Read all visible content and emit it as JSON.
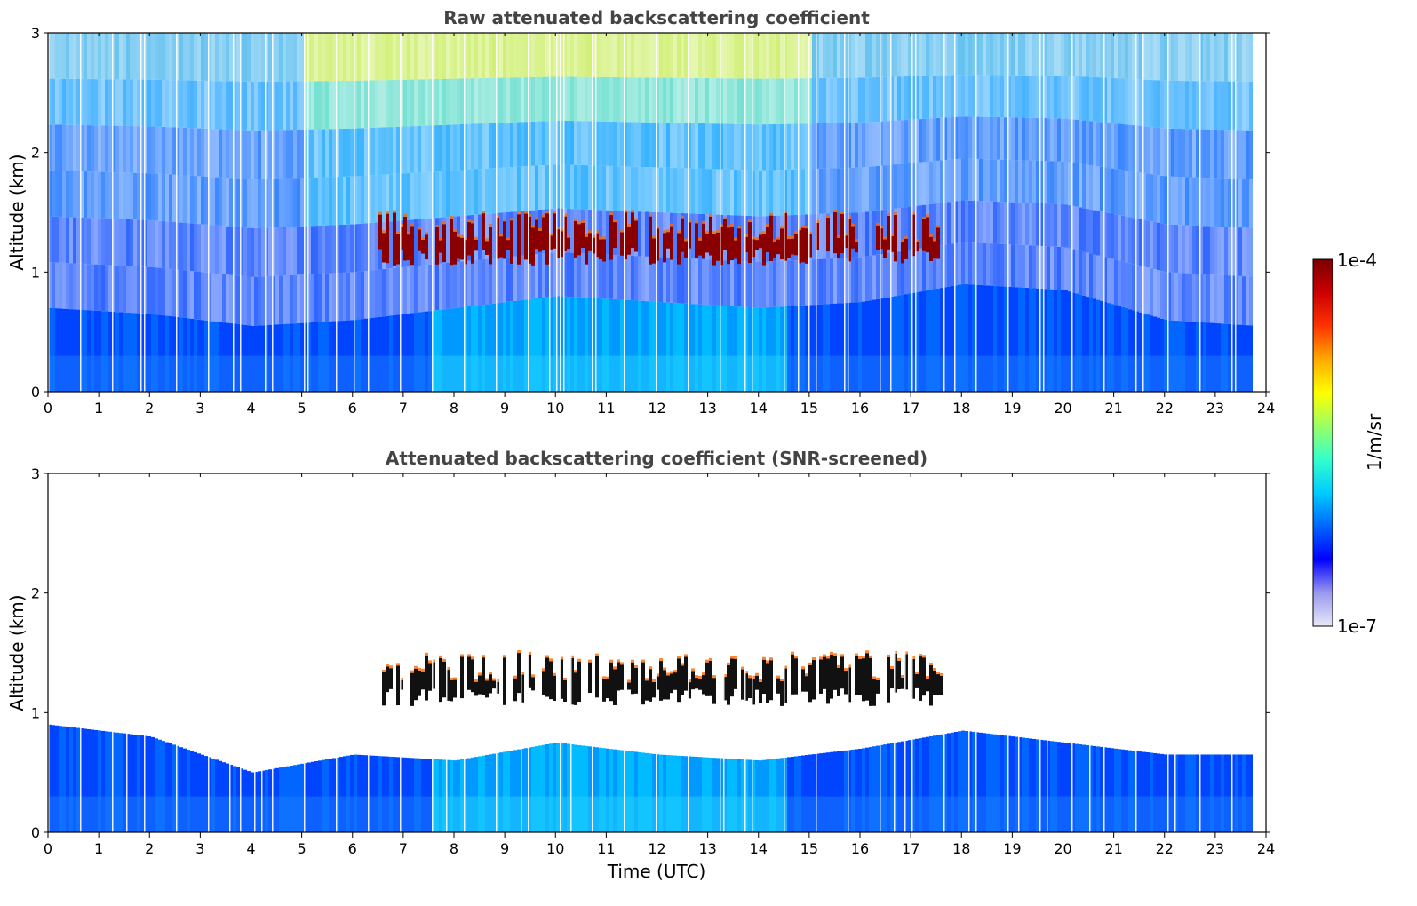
{
  "chart_data": [
    {
      "type": "heatmap",
      "title": "Raw attenuated backscattering coefficient",
      "xlabel": "",
      "ylabel": "Altitude (km)",
      "xlim": [
        0,
        24
      ],
      "ylim": [
        0,
        3
      ],
      "xticks": [
        "0",
        "1",
        "2",
        "3",
        "4",
        "5",
        "6",
        "7",
        "8",
        "9",
        "10",
        "11",
        "12",
        "13",
        "14",
        "15",
        "16",
        "17",
        "18",
        "19",
        "20",
        "21",
        "22",
        "23",
        "24"
      ],
      "yticks": [
        "0",
        "1",
        "2",
        "3"
      ],
      "profile": {
        "time_hours": [
          0,
          2,
          4,
          6,
          8,
          10,
          12,
          14,
          16,
          18,
          20,
          22,
          23.8
        ],
        "boundary_layer_top_km": [
          0.7,
          0.65,
          0.55,
          0.6,
          0.7,
          0.8,
          0.75,
          0.7,
          0.75,
          0.9,
          0.85,
          0.6,
          0.55
        ],
        "cloud_layer": {
          "start_hour": 6.5,
          "end_hour": 17.6,
          "base_km": 1.1,
          "top_km": 1.5
        }
      }
    },
    {
      "type": "heatmap",
      "title": "Attenuated backscattering coefficient (SNR-screened)",
      "xlabel": "Time (UTC)",
      "ylabel": "Altitude (km)",
      "xlim": [
        0,
        24
      ],
      "ylim": [
        0,
        3
      ],
      "xticks": [
        "0",
        "1",
        "2",
        "3",
        "4",
        "5",
        "6",
        "7",
        "8",
        "9",
        "10",
        "11",
        "12",
        "13",
        "14",
        "15",
        "16",
        "17",
        "18",
        "19",
        "20",
        "21",
        "22",
        "23",
        "24"
      ],
      "yticks": [
        "0",
        "1",
        "2",
        "3"
      ],
      "profile": {
        "time_hours": [
          0,
          2,
          4,
          6,
          8,
          10,
          12,
          14,
          16,
          18,
          20,
          22,
          23.8
        ],
        "boundary_layer_top_km": [
          0.9,
          0.8,
          0.5,
          0.65,
          0.6,
          0.75,
          0.65,
          0.6,
          0.7,
          0.85,
          0.75,
          0.65,
          0.65
        ],
        "cloud_layer": {
          "start_hour": 6.5,
          "end_hour": 17.6,
          "base_km": 1.1,
          "top_km": 1.5
        }
      }
    }
  ],
  "colorbar": {
    "label": "1/m/sr",
    "max_label": "1e-4",
    "min_label": "1e-7",
    "colors": [
      "#e8e8f8",
      "#9999ee",
      "#0000ff",
      "#0066ff",
      "#00ccff",
      "#33ffcc",
      "#99ff66",
      "#ffff00",
      "#ffaa00",
      "#ff3300",
      "#cc0000",
      "#7a0000"
    ]
  }
}
